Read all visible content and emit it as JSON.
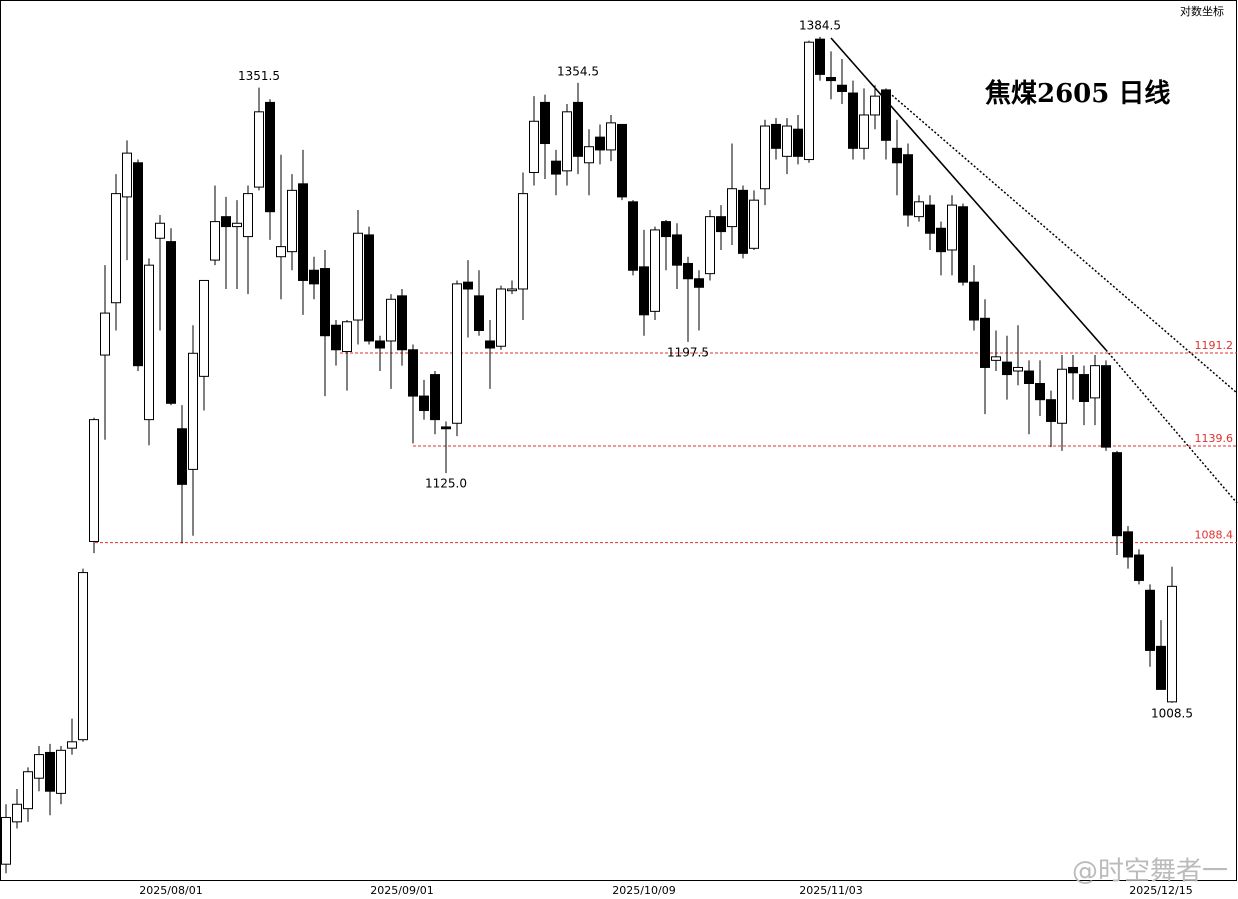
{
  "chart_data": {
    "type": "candlestick",
    "title": "焦煤2605 日线",
    "scale_label": "对数坐标",
    "watermark": "@时空舞者一",
    "log_scale": true,
    "ylim": [
      927,
      1409
    ],
    "up_color": "#ffffff",
    "down_color": "#000000",
    "level_color": "#e03030",
    "levels": [
      1191.2,
      1139.6,
      1088.4
    ],
    "categories": [
      null,
      null,
      null,
      null,
      null,
      null,
      null,
      null,
      null,
      null,
      null,
      null,
      null,
      null,
      null,
      "2025/08/01",
      null,
      null,
      null,
      null,
      null,
      null,
      null,
      null,
      null,
      null,
      null,
      null,
      null,
      null,
      null,
      null,
      null,
      null,
      null,
      null,
      "2025/09/01",
      null,
      null,
      null,
      null,
      null,
      null,
      null,
      null,
      null,
      null,
      null,
      null,
      null,
      null,
      null,
      null,
      null,
      null,
      null,
      null,
      null,
      "2025/10/09",
      null,
      null,
      null,
      null,
      null,
      null,
      null,
      null,
      null,
      null,
      null,
      null,
      null,
      null,
      null,
      null,
      "2025/11/03",
      null,
      null,
      null,
      null,
      null,
      null,
      null,
      null,
      null,
      null,
      null,
      null,
      null,
      null,
      null,
      null,
      null,
      null,
      null,
      null,
      null,
      null,
      null,
      null,
      null,
      null,
      null,
      null,
      null,
      "2025/12/15",
      null
    ],
    "open": [
      934,
      953,
      959,
      973,
      985,
      966,
      987,
      991,
      1089,
      1190,
      1220,
      1283,
      1304,
      1154,
      1258,
      1256,
      1149,
      1127,
      1178,
      1245,
      1271,
      1265,
      1259,
      1289,
      1342,
      1247,
      1250,
      1291,
      1239,
      1240,
      1207,
      1192,
      1210,
      1260,
      1198,
      1198,
      1224,
      1193,
      1167,
      1179,
      1150,
      1152,
      1232,
      1224,
      1198,
      1195,
      1227,
      1228,
      1298,
      1342,
      1305,
      1299,
      1342,
      1304,
      1320,
      1312,
      1328,
      1280,
      1241,
      1215,
      1268,
      1260,
      1243,
      1234,
      1237,
      1271,
      1265,
      1287,
      1252,
      1288,
      1328,
      1308,
      1325,
      1306,
      1383,
      1358,
      1353,
      1348,
      1313,
      1334,
      1350,
      1313,
      1309,
      1271,
      1278,
      1264,
      1251,
      1277,
      1232,
      1211,
      1187,
      1186,
      1181,
      1181,
      1174,
      1165,
      1152,
      1183,
      1179,
      1166,
      1184,
      1136,
      1094,
      1082,
      1064,
      1036,
      1009
    ],
    "high": [
      961,
      968,
      978,
      988,
      989,
      988,
      1001,
      1075,
      1155,
      1242,
      1297,
      1318,
      1306,
      1246,
      1272,
      1264,
      1162,
      1207,
      1233,
      1290,
      1283,
      1281,
      1290,
      1351.5,
      1344,
      1309,
      1297,
      1312,
      1247,
      1251,
      1210,
      1210,
      1275,
      1265,
      1201,
      1225,
      1228,
      1196,
      1176,
      1181,
      1153,
      1233,
      1245,
      1239,
      1210,
      1230,
      1233,
      1298,
      1346,
      1347,
      1312,
      1341,
      1354.5,
      1325,
      1328,
      1334,
      1328,
      1281,
      1263,
      1265,
      1269,
      1267,
      1247,
      1239,
      1275,
      1278,
      1316,
      1290,
      1287,
      1331,
      1332,
      1332,
      1334,
      1382,
      1384.5,
      1375,
      1370,
      1356,
      1351,
      1353,
      1351,
      1331,
      1316,
      1284,
      1284,
      1268,
      1284,
      1279,
      1242,
      1222,
      1204,
      1201,
      1207,
      1187,
      1187,
      1170,
      1190,
      1190,
      1184,
      1190,
      1187,
      1137,
      1097,
      1085,
      1067,
      1049,
      1076
    ],
    "low": [
      930,
      950,
      953,
      967,
      956,
      961,
      984,
      990,
      1083,
      1143,
      1204,
      1245,
      1181,
      1140,
      1204,
      1162,
      1088,
      1092,
      1159,
      1242,
      1228,
      1228,
      1225,
      1287,
      1257,
      1222,
      1239,
      1213,
      1222,
      1167,
      1184,
      1170,
      1196,
      1196,
      1181,
      1171,
      1184,
      1141,
      1154,
      1146,
      1125.0,
      1145,
      1200,
      1201,
      1171,
      1193,
      1225,
      1210,
      1290,
      1294,
      1284,
      1290,
      1297,
      1284,
      1303,
      1305,
      1281,
      1236,
      1201,
      1210,
      1239,
      1228,
      1197.5,
      1204,
      1233,
      1251,
      1254,
      1246,
      1251,
      1278,
      1306,
      1297,
      1303,
      1304,
      1356,
      1344,
      1341,
      1306,
      1306,
      1325,
      1306,
      1284,
      1265,
      1268,
      1251,
      1236,
      1236,
      1230,
      1204,
      1157,
      1181,
      1165,
      1173,
      1146,
      1156,
      1139,
      1137,
      1165,
      1151,
      1151,
      1137,
      1082,
      1075,
      1067,
      1026,
      1015,
      1008.5
    ],
    "close": [
      955,
      961,
      976,
      984,
      967,
      986,
      990,
      1073,
      1154,
      1214,
      1285,
      1310,
      1184,
      1242,
      1267,
      1163,
      1119,
      1191,
      1233,
      1268,
      1265,
      1267,
      1285,
      1336,
      1274,
      1253,
      1287,
      1233,
      1231,
      1201,
      1193,
      1209,
      1261,
      1198,
      1194,
      1222,
      1193,
      1167,
      1159,
      1154,
      1149,
      1231,
      1228,
      1204,
      1194,
      1228,
      1228,
      1285,
      1330,
      1316,
      1297,
      1336,
      1308,
      1314,
      1312,
      1329,
      1283,
      1239,
      1213,
      1263,
      1259,
      1242,
      1234,
      1229,
      1271,
      1262,
      1288,
      1249,
      1281,
      1327,
      1313,
      1327,
      1308,
      1381,
      1360,
      1356,
      1349,
      1313,
      1334,
      1346,
      1318,
      1304,
      1272,
      1280,
      1261,
      1250,
      1278,
      1232,
      1210,
      1183,
      1189,
      1179,
      1183,
      1174,
      1165,
      1153,
      1182,
      1180,
      1164,
      1184,
      1139,
      1092,
      1081,
      1069,
      1034,
      1015,
      1066
    ],
    "high_labels": [
      null,
      null,
      null,
      null,
      null,
      null,
      null,
      null,
      null,
      null,
      null,
      null,
      null,
      null,
      null,
      null,
      null,
      null,
      null,
      null,
      null,
      null,
      null,
      "1351.5",
      null,
      null,
      null,
      null,
      null,
      null,
      null,
      null,
      null,
      null,
      null,
      null,
      null,
      null,
      null,
      null,
      null,
      null,
      null,
      null,
      null,
      null,
      null,
      null,
      null,
      null,
      null,
      null,
      "1354.5",
      null,
      null,
      null,
      null,
      null,
      null,
      null,
      null,
      null,
      null,
      null,
      null,
      null,
      null,
      null,
      null,
      null,
      null,
      null,
      null,
      null,
      "1384.5",
      null,
      null,
      null,
      null,
      null,
      null,
      null,
      null,
      null,
      null,
      null,
      null,
      null,
      null,
      null,
      null,
      null,
      null,
      null,
      null,
      null,
      null,
      null,
      null,
      null,
      null,
      null,
      null,
      null,
      null,
      null,
      null
    ],
    "low_labels": [
      null,
      null,
      null,
      null,
      null,
      null,
      null,
      null,
      null,
      null,
      null,
      null,
      null,
      null,
      null,
      null,
      null,
      null,
      null,
      null,
      null,
      null,
      null,
      null,
      null,
      null,
      null,
      null,
      null,
      null,
      null,
      null,
      null,
      null,
      null,
      null,
      null,
      null,
      null,
      null,
      "1125.0",
      null,
      null,
      null,
      null,
      null,
      null,
      null,
      null,
      null,
      null,
      null,
      null,
      null,
      null,
      null,
      null,
      null,
      null,
      null,
      null,
      null,
      "1197.5",
      null,
      null,
      null,
      null,
      null,
      null,
      null,
      null,
      null,
      null,
      null,
      null,
      null,
      null,
      null,
      null,
      null,
      null,
      null,
      null,
      null,
      null,
      null,
      null,
      null,
      null,
      null,
      null,
      null,
      null,
      null,
      null,
      null,
      null,
      null,
      null,
      null,
      null,
      null,
      null,
      null,
      null,
      null,
      "1008.5"
    ]
  }
}
